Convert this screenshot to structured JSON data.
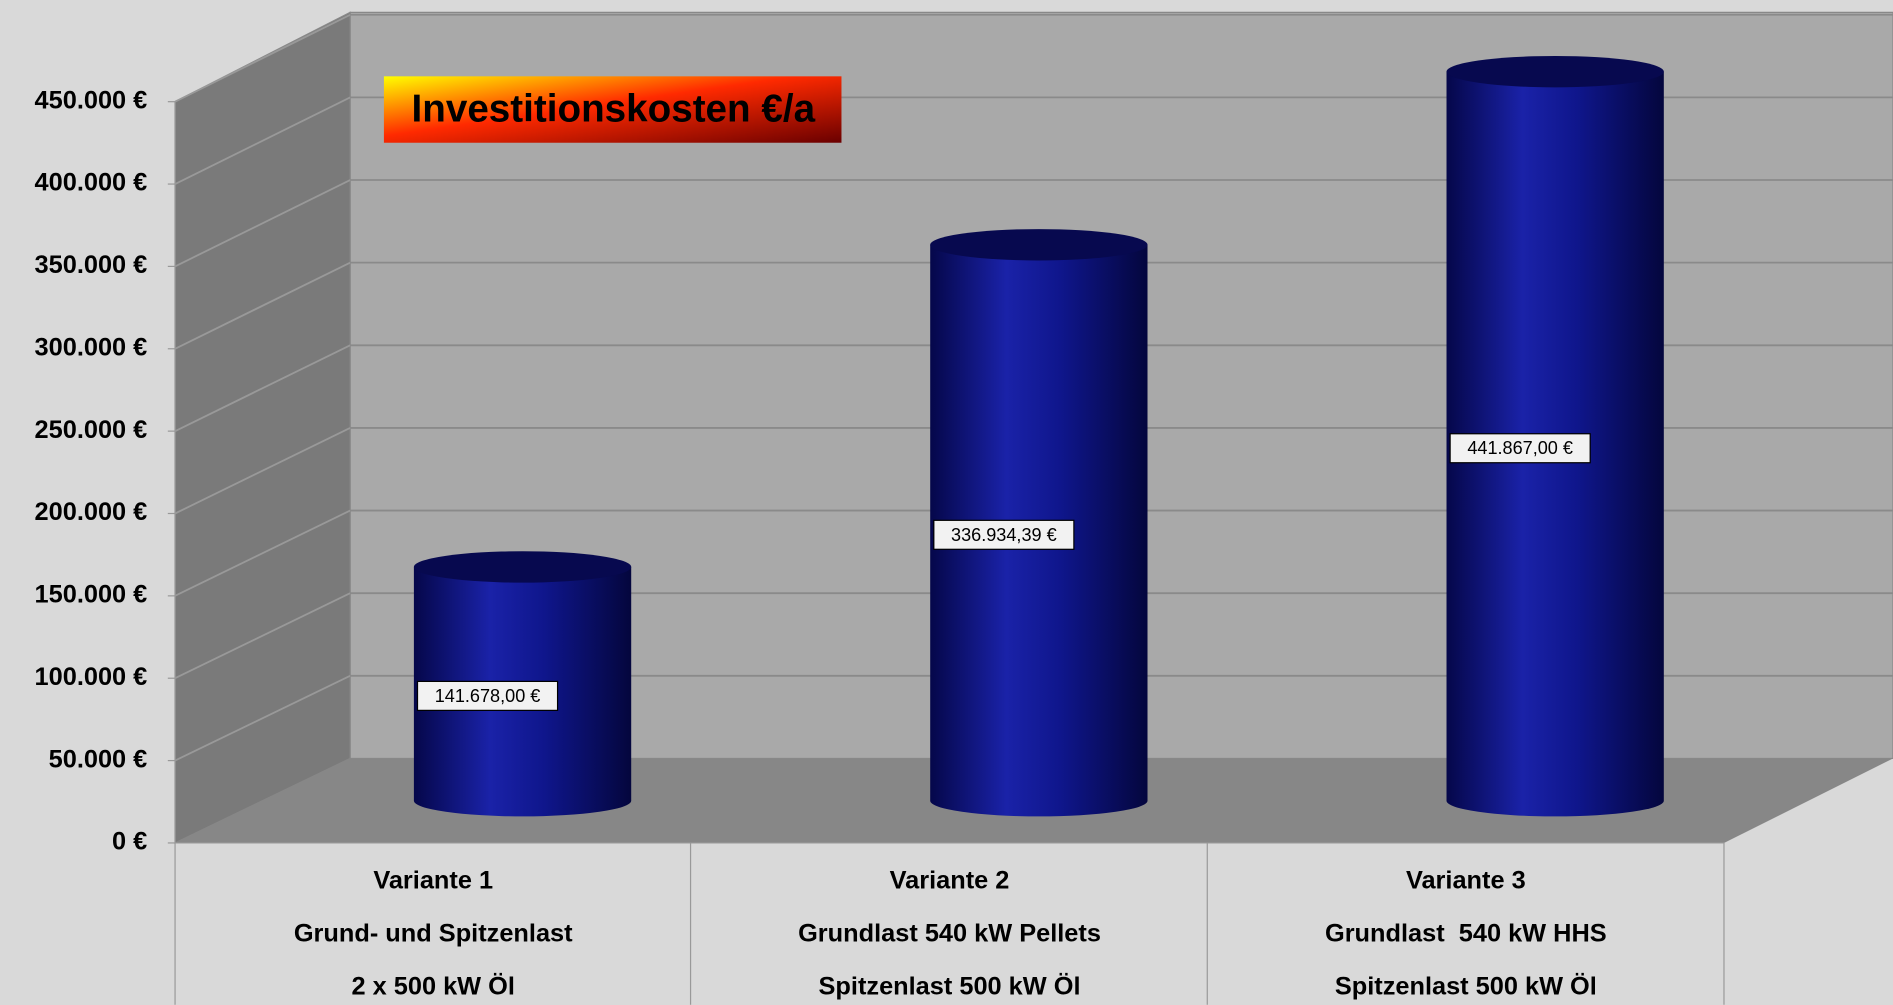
{
  "chart_data": {
    "type": "cylinder",
    "title": "Investitionskosten €/a",
    "categories": [
      [
        "Variante 1",
        "Grund- und Spitzenlast",
        "2 x 500 kW Öl"
      ],
      [
        "Variante 2",
        "Grundlast 540 kW Pellets",
        "Spitzenlast 500 kW Öl"
      ],
      [
        "Variante 3",
        "Grundlast  540 kW HHS",
        "Spitzenlast 500 kW Öl"
      ]
    ],
    "values": [
      141678,
      336934.39,
      441867
    ],
    "value_labels": [
      "141.678,00 €",
      "336.934,39 €",
      "441.867,00 €"
    ],
    "color": "#0d1590",
    "ylim": [
      0,
      450000
    ],
    "yticks": [
      {
        "value": 0,
        "label": "0 €"
      },
      {
        "value": 50000,
        "label": "50.000 €"
      },
      {
        "value": 100000,
        "label": "100.000 €"
      },
      {
        "value": 150000,
        "label": "150.000 €"
      },
      {
        "value": 200000,
        "label": "200.000 €"
      },
      {
        "value": 250000,
        "label": "250.000 €"
      },
      {
        "value": 300000,
        "label": "300.000 €"
      },
      {
        "value": 350000,
        "label": "350.000 €"
      },
      {
        "value": 400000,
        "label": "400.000 €"
      },
      {
        "value": 450000,
        "label": "450.000 €"
      }
    ],
    "grid": true
  }
}
